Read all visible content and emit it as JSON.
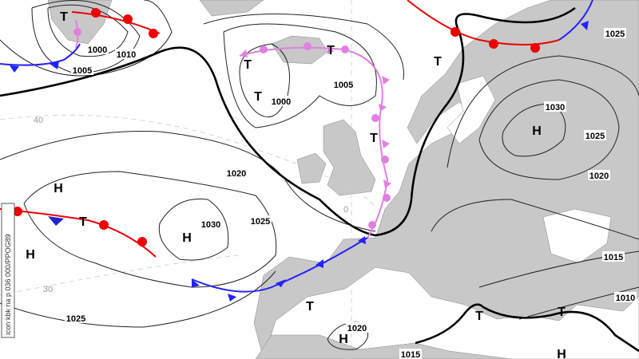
{
  "map": {
    "pressure_centers": [
      {
        "label": "T"
      },
      {
        "label": "T"
      },
      {
        "label": "T"
      },
      {
        "label": "T"
      },
      {
        "label": "T"
      },
      {
        "label": "H"
      },
      {
        "label": "T"
      },
      {
        "label": "H"
      },
      {
        "label": "T"
      },
      {
        "label": "H"
      },
      {
        "label": "H"
      },
      {
        "label": "T"
      },
      {
        "label": "T"
      },
      {
        "label": "T"
      },
      {
        "label": "H"
      },
      {
        "label": "H"
      }
    ],
    "isobar_labels": [
      1000,
      1010,
      1005,
      1025,
      1000,
      1005,
      1030,
      1025,
      1020,
      1020,
      1030,
      1025,
      1015,
      1010,
      1025,
      1020,
      1015
    ],
    "grid_labels": [
      "40",
      "30",
      "0"
    ],
    "credit": "icon kbk na p 036 000/PPOG89"
  }
}
